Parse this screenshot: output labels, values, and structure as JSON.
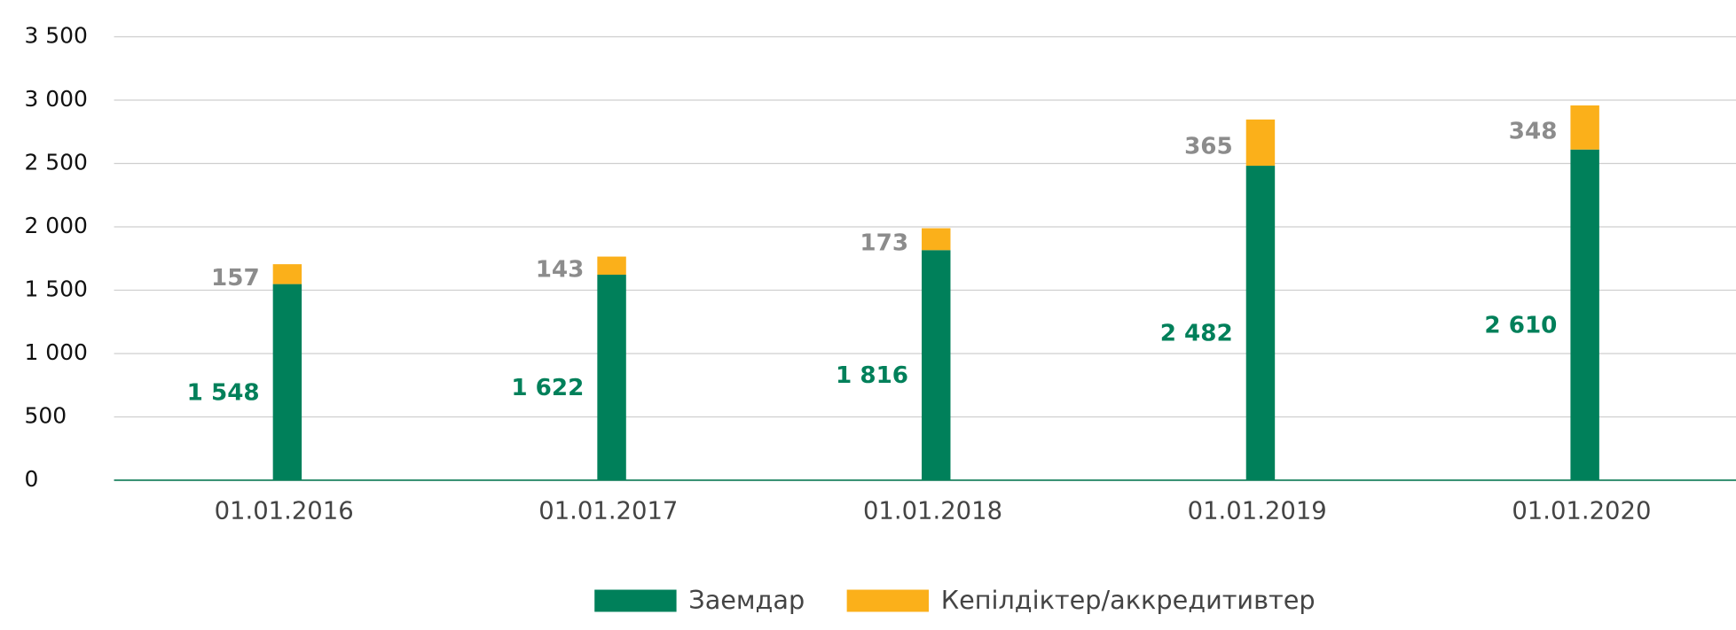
{
  "chart_data": {
    "type": "bar",
    "stacked": true,
    "categories": [
      "01.01.2016",
      "01.01.2017",
      "01.01.2018",
      "01.01.2019",
      "01.01.2020"
    ],
    "series": [
      {
        "name": "Заемдар",
        "color": "#00805a",
        "values": [
          1548,
          1622,
          1816,
          2482,
          2610
        ],
        "value_labels": [
          "1 548",
          "1 622",
          "1 816",
          "2 482",
          "2 610"
        ],
        "label_color": "#00805a"
      },
      {
        "name": "Кепілдіктер/аккредитивтер",
        "color": "#fbb01a",
        "values": [
          157,
          143,
          173,
          365,
          348
        ],
        "label_color": "#8c8c8c"
      }
    ],
    "ylim": [
      0,
      3500
    ],
    "yticks": [
      0,
      500,
      {
        "value": 1000,
        "label": "1 000"
      },
      {
        "value": 1500,
        "label": "1 500"
      },
      {
        "value": 2000,
        "label": "2 000"
      },
      {
        "value": 2500,
        "label": "2 500"
      },
      {
        "value": 3000,
        "label": "3 000"
      },
      {
        "value": 3500,
        "label": "3 500"
      }
    ],
    "grid": true,
    "legend": "bottom"
  }
}
